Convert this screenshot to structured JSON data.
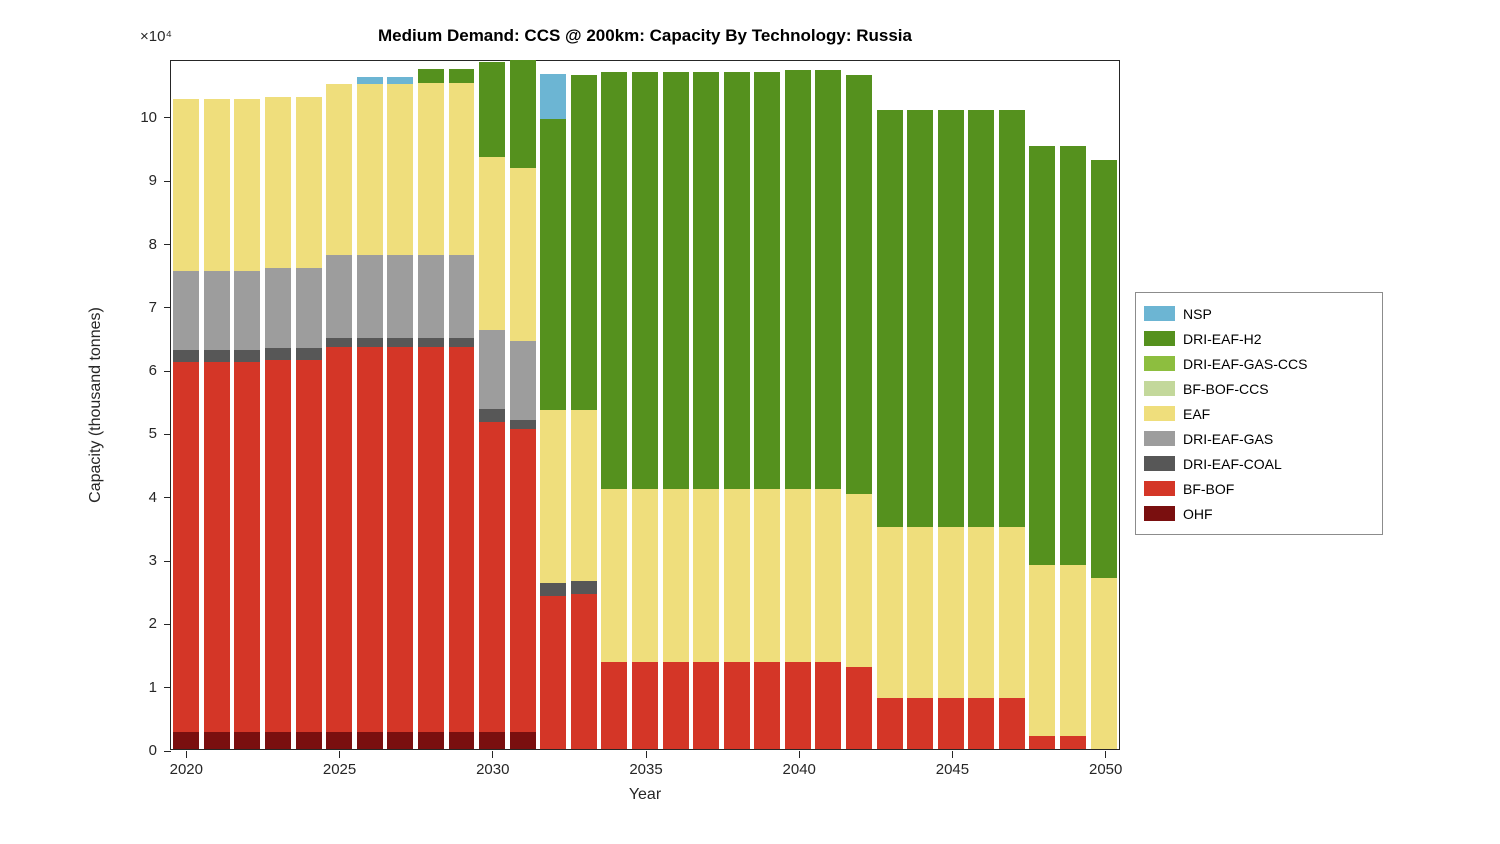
{
  "title": "Medium Demand: CCS @ 200km: Capacity By Technology: Russia",
  "xlabel": "Year",
  "ylabel": "Capacity (thousand tonnes)",
  "y_offset_label": "×10⁴",
  "chart_data": {
    "type": "bar",
    "stacked": true,
    "title": "Medium Demand: CCS @ 200km: Capacity By Technology: Russia",
    "xlabel": "Year",
    "ylabel": "Capacity (thousand tonnes)",
    "y_unit_multiplier": 10000,
    "ylim": [
      0,
      10.9
    ],
    "grid": false,
    "legend_position": "right-outside",
    "years": [
      2020,
      2021,
      2022,
      2023,
      2024,
      2025,
      2026,
      2027,
      2028,
      2029,
      2030,
      2031,
      2032,
      2033,
      2034,
      2035,
      2036,
      2037,
      2038,
      2039,
      2040,
      2041,
      2042,
      2043,
      2044,
      2045,
      2046,
      2047,
      2048,
      2049,
      2050
    ],
    "x_tick_years": [
      2020,
      2025,
      2030,
      2035,
      2040,
      2045,
      2050
    ],
    "y_ticks": [
      0,
      1,
      2,
      3,
      4,
      5,
      6,
      7,
      8,
      9,
      10
    ],
    "series": [
      {
        "name": "OHF",
        "color": "#7A0F0F",
        "values": [
          0.27,
          0.27,
          0.27,
          0.27,
          0.27,
          0.27,
          0.27,
          0.27,
          0.27,
          0.27,
          0.27,
          0.27,
          0,
          0,
          0,
          0,
          0,
          0,
          0,
          0,
          0,
          0,
          0,
          0,
          0,
          0,
          0,
          0,
          0,
          0,
          0
        ]
      },
      {
        "name": "BF-BOF",
        "color": "#D43627",
        "values": [
          5.85,
          5.85,
          5.85,
          5.88,
          5.88,
          6.08,
          6.08,
          6.08,
          6.08,
          6.08,
          4.9,
          4.78,
          2.42,
          2.45,
          1.38,
          1.38,
          1.38,
          1.38,
          1.38,
          1.38,
          1.38,
          1.38,
          1.3,
          0.8,
          0.8,
          0.8,
          0.8,
          0.8,
          0.2,
          0.2,
          0
        ]
      },
      {
        "name": "DRI-EAF-COAL",
        "color": "#575757",
        "values": [
          0.18,
          0.18,
          0.18,
          0.18,
          0.18,
          0.15,
          0.15,
          0.15,
          0.15,
          0.15,
          0.2,
          0.15,
          0.2,
          0.2,
          0,
          0,
          0,
          0,
          0,
          0,
          0,
          0,
          0,
          0,
          0,
          0,
          0,
          0,
          0,
          0,
          0
        ]
      },
      {
        "name": "DRI-EAF-GAS",
        "color": "#9D9D9D",
        "values": [
          1.25,
          1.25,
          1.25,
          1.27,
          1.27,
          1.3,
          1.3,
          1.3,
          1.3,
          1.3,
          1.25,
          1.25,
          0,
          0,
          0,
          0,
          0,
          0,
          0,
          0,
          0,
          0,
          0,
          0,
          0,
          0,
          0,
          0,
          0,
          0,
          0
        ]
      },
      {
        "name": "EAF",
        "color": "#EFDE7C",
        "values": [
          2.72,
          2.72,
          2.72,
          2.7,
          2.7,
          2.7,
          2.7,
          2.7,
          2.72,
          2.72,
          2.73,
          2.73,
          2.73,
          2.7,
          2.72,
          2.72,
          2.72,
          2.72,
          2.72,
          2.72,
          2.72,
          2.72,
          2.73,
          2.7,
          2.7,
          2.7,
          2.7,
          2.7,
          2.7,
          2.7,
          2.7
        ]
      },
      {
        "name": "BF-BOF-CCS",
        "color": "#C3D89B",
        "values": [
          0,
          0,
          0,
          0,
          0,
          0,
          0,
          0,
          0,
          0,
          0,
          0,
          0,
          0,
          0,
          0,
          0,
          0,
          0,
          0,
          0,
          0,
          0,
          0,
          0,
          0,
          0,
          0,
          0,
          0,
          0
        ]
      },
      {
        "name": "DRI-EAF-GAS-CCS",
        "color": "#8DBE3F",
        "values": [
          0,
          0,
          0,
          0,
          0,
          0,
          0,
          0,
          0,
          0,
          0,
          0,
          0,
          0,
          0,
          0,
          0,
          0,
          0,
          0,
          0,
          0,
          0,
          0,
          0,
          0,
          0,
          0,
          0,
          0,
          0
        ]
      },
      {
        "name": "DRI-EAF-H2",
        "color": "#55911E",
        "values": [
          0,
          0,
          0,
          0,
          0,
          0,
          0,
          0,
          0.22,
          0.22,
          1.5,
          1.7,
          4.6,
          5.3,
          6.6,
          6.6,
          6.6,
          6.6,
          6.6,
          6.6,
          6.62,
          6.62,
          6.62,
          6.6,
          6.6,
          6.6,
          6.6,
          6.6,
          6.62,
          6.62,
          6.6
        ]
      },
      {
        "name": "NSP",
        "color": "#6CB5D3",
        "values": [
          0,
          0,
          0,
          0,
          0,
          0,
          0.12,
          0.12,
          0,
          0,
          0,
          0,
          0.72,
          0,
          0,
          0,
          0,
          0,
          0,
          0,
          0,
          0,
          0,
          0,
          0,
          0,
          0,
          0,
          0,
          0,
          0
        ]
      }
    ],
    "legend_order": [
      "NSP",
      "DRI-EAF-H2",
      "DRI-EAF-GAS-CCS",
      "BF-BOF-CCS",
      "EAF",
      "DRI-EAF-GAS",
      "DRI-EAF-COAL",
      "BF-BOF",
      "OHF"
    ]
  }
}
